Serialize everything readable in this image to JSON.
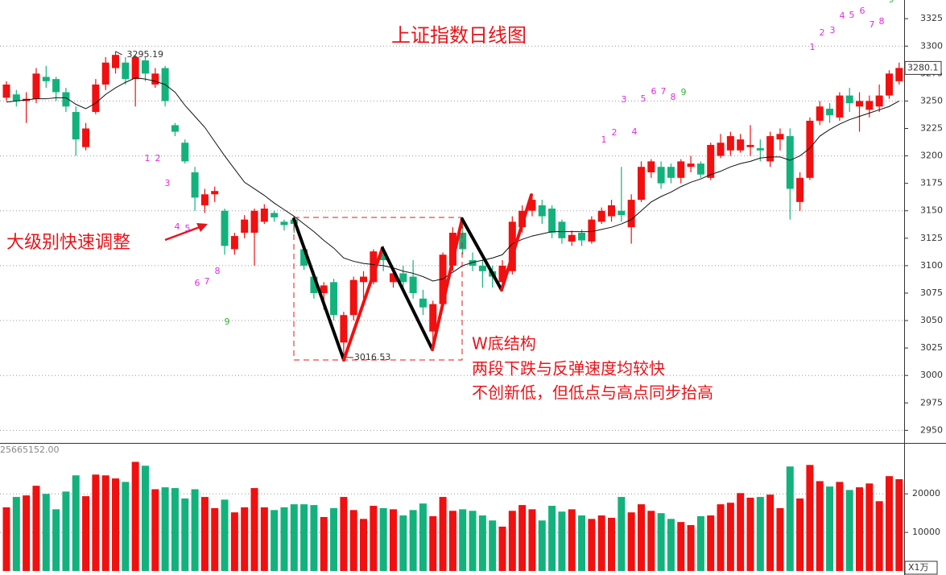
{
  "chart_data": [
    {
      "type": "candlestick",
      "title": "上证指数日线图",
      "annotations": [
        "大级别快速调整",
        "W底结构",
        "两段下跌与反弹速度均较快",
        "不创新低，但低点与高点同步抬高"
      ],
      "open": [
        3253,
        3256,
        3250,
        3252,
        3272,
        3270,
        3258,
        3240,
        3208,
        3240,
        3265,
        3280,
        3285,
        3270,
        3287,
        3265,
        3280,
        3228,
        3212,
        3185,
        3155,
        3165,
        3150,
        3115,
        3130,
        3130,
        3140,
        3148,
        3140,
        3142,
        3115,
        3090,
        3075,
        3085,
        3030,
        3055,
        3085,
        3085,
        3112,
        3085,
        3093,
        3090,
        3070,
        3040,
        3065,
        3100,
        3130,
        3105,
        3100,
        3095,
        3085,
        3095,
        3135,
        3150,
        3155,
        3152,
        3140,
        3122,
        3130,
        3122,
        3140,
        3145,
        3150,
        3135,
        3160,
        3185,
        3190,
        3190,
        3180,
        3190,
        3193,
        3180,
        3200,
        3205,
        3205,
        3208,
        3207,
        3195,
        3215,
        3218,
        3158,
        3180,
        3232,
        3243,
        3235,
        3255,
        3245,
        3242,
        3245,
        3255,
        3268
      ],
      "high": [
        3268,
        3260,
        3258,
        3280,
        3282,
        3272,
        3262,
        3245,
        3230,
        3270,
        3290,
        3295.19,
        3290,
        3292,
        3290,
        3280,
        3282,
        3230,
        3215,
        3190,
        3170,
        3172,
        3152,
        3130,
        3146,
        3152,
        3156,
        3150,
        3142,
        3145,
        3118,
        3095,
        3085,
        3088,
        3058,
        3090,
        3095,
        3115,
        3118,
        3095,
        3100,
        3105,
        3078,
        3068,
        3112,
        3135,
        3140,
        3112,
        3105,
        3100,
        3105,
        3145,
        3155,
        3165,
        3160,
        3155,
        3142,
        3132,
        3133,
        3145,
        3153,
        3160,
        3190,
        3165,
        3195,
        3197,
        3195,
        3193,
        3197,
        3200,
        3195,
        3212,
        3220,
        3222,
        3220,
        3228,
        3215,
        3222,
        3225,
        3225,
        3185,
        3235,
        3250,
        3248,
        3258,
        3262,
        3258,
        3255,
        3265,
        3278,
        3285
      ],
      "low": [
        3250,
        3245,
        3230,
        3248,
        3262,
        3250,
        3240,
        3200,
        3205,
        3238,
        3260,
        3275,
        3265,
        3245,
        3268,
        3262,
        3245,
        3218,
        3193,
        3150,
        3148,
        3158,
        3110,
        3110,
        3125,
        3100,
        3138,
        3140,
        3132,
        3130,
        3096,
        3070,
        3060,
        3050,
        3016.53,
        3050,
        3070,
        3083,
        3095,
        3080,
        3078,
        3070,
        3055,
        3025,
        3060,
        3095,
        3110,
        3095,
        3080,
        3080,
        3080,
        3092,
        3130,
        3145,
        3138,
        3125,
        3120,
        3118,
        3118,
        3120,
        3138,
        3140,
        3140,
        3120,
        3158,
        3180,
        3170,
        3175,
        3175,
        3185,
        3180,
        3178,
        3198,
        3200,
        3203,
        3200,
        3195,
        3190,
        3205,
        3142,
        3150,
        3178,
        3228,
        3230,
        3232,
        3240,
        3222,
        3235,
        3240,
        3252,
        3265
      ],
      "close": [
        3265,
        3250,
        3252,
        3275,
        3268,
        3258,
        3245,
        3215,
        3225,
        3265,
        3285,
        3292,
        3270,
        3290,
        3275,
        3275,
        3250,
        3222,
        3195,
        3162,
        3165,
        3168,
        3118,
        3127,
        3142,
        3150,
        3152,
        3144,
        3137,
        3138,
        3100,
        3075,
        3082,
        3055,
        3055,
        3087,
        3090,
        3113,
        3105,
        3093,
        3085,
        3075,
        3062,
        3065,
        3110,
        3130,
        3115,
        3100,
        3095,
        3090,
        3100,
        3140,
        3150,
        3160,
        3145,
        3130,
        3125,
        3128,
        3123,
        3142,
        3150,
        3155,
        3146,
        3160,
        3190,
        3195,
        3175,
        3180,
        3195,
        3193,
        3183,
        3210,
        3212,
        3218,
        3215,
        3210,
        3205,
        3218,
        3220,
        3170,
        3180,
        3232,
        3245,
        3237,
        3255,
        3248,
        3250,
        3250,
        3255,
        3275,
        3280.1
      ],
      "ma": [
        3249,
        3250,
        3251,
        3252,
        3252,
        3253,
        3253,
        3247,
        3243,
        3248,
        3256,
        3262,
        3267,
        3271,
        3270,
        3268,
        3265,
        3258,
        3246,
        3236,
        3226,
        3213,
        3200,
        3188,
        3176,
        3170,
        3164,
        3157,
        3151,
        3145,
        3138,
        3131,
        3123,
        3116,
        3107,
        3104,
        3102,
        3101,
        3100,
        3098,
        3095,
        3093,
        3090,
        3086,
        3088,
        3094,
        3100,
        3103,
        3105,
        3107,
        3110,
        3120,
        3124,
        3127,
        3129,
        3131,
        3131,
        3131,
        3131,
        3131,
        3133,
        3135,
        3138,
        3142,
        3150,
        3158,
        3163,
        3167,
        3172,
        3176,
        3179,
        3183,
        3186,
        3190,
        3193,
        3195,
        3198,
        3199,
        3199,
        3196,
        3200,
        3207,
        3218,
        3224,
        3229,
        3233,
        3236,
        3239,
        3242,
        3245,
        3250
      ],
      "up_color": "#f01010",
      "down_color": "#13b27c",
      "ma_color": "#111111",
      "ylim": [
        2940,
        3342
      ],
      "yticks": [
        3325,
        3300,
        3275,
        3250,
        3225,
        3200,
        3175,
        3150,
        3125,
        3100,
        3075,
        3050,
        3025,
        3000,
        2975,
        2950
      ],
      "counts": [
        [
          "1",
          "2",
          "3",
          "4",
          "5",
          "6",
          "7",
          "8",
          "9"
        ],
        [
          "1",
          "2",
          "3",
          "4",
          "5",
          "6",
          "7",
          "8",
          "9"
        ],
        [
          "1",
          "2",
          "3",
          "4",
          "5",
          "6",
          "7",
          "8",
          "9"
        ]
      ],
      "count_color": "#e02ee0",
      "count_last_color": "#2fb52f"
    },
    {
      "type": "bar",
      "label": "25665152.00",
      "unit": "X1万",
      "values": [
        16500,
        19200,
        19600,
        22100,
        20000,
        16000,
        20600,
        24800,
        19400,
        25000,
        24800,
        24000,
        23100,
        28300,
        27300,
        21200,
        21700,
        21500,
        18800,
        21200,
        19200,
        16300,
        18500,
        15200,
        16500,
        21500,
        16500,
        15800,
        16500,
        17300,
        17300,
        17100,
        14000,
        16300,
        19200,
        15800,
        13500,
        16900,
        16300,
        16000,
        14400,
        15800,
        17500,
        14200,
        19200,
        15600,
        16000,
        15600,
        14400,
        13100,
        11500,
        15600,
        17100,
        16000,
        13100,
        16900,
        15400,
        16000,
        14400,
        13500,
        14400,
        13800,
        19200,
        15200,
        17300,
        15600,
        15000,
        13500,
        12700,
        11900,
        14200,
        14400,
        17300,
        17700,
        20200,
        19000,
        19200,
        19800,
        16300,
        27100,
        18800,
        27500,
        23300,
        21900,
        23100,
        21000,
        21700,
        22700,
        18100,
        24600,
        23800
      ],
      "ylim": [
        0,
        33000
      ],
      "yticks": [
        20000,
        10000
      ]
    }
  ]
}
